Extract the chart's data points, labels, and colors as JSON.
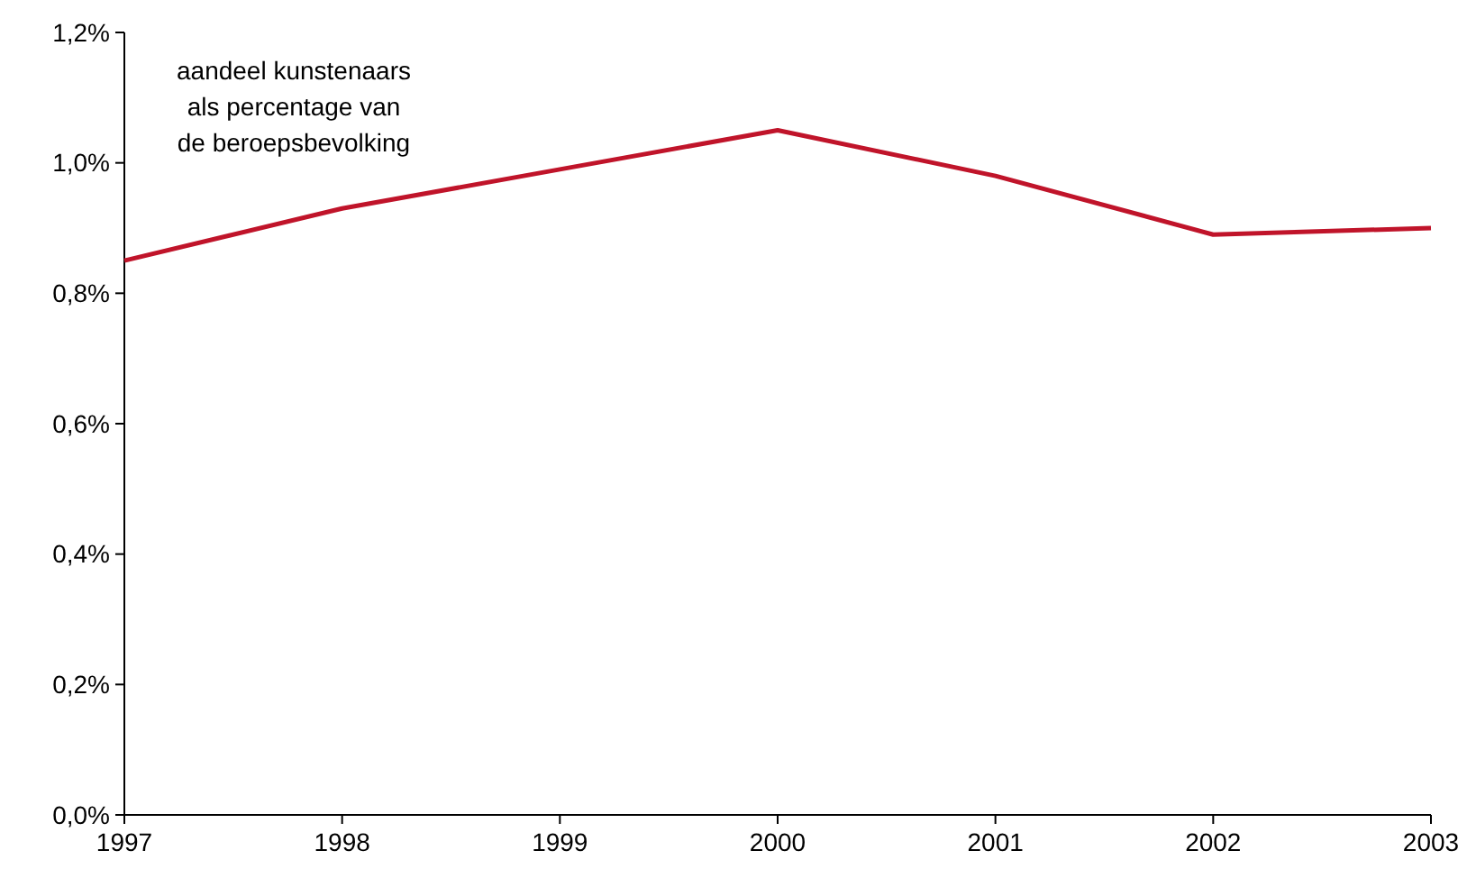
{
  "chart_data": {
    "type": "line",
    "categories": [
      "1997",
      "1998",
      "1999",
      "2000",
      "2001",
      "2002",
      "2003"
    ],
    "series": [
      {
        "color": "#c0142a",
        "values": [
          0.85,
          0.93,
          0.99,
          1.05,
          0.98,
          0.89,
          0.9
        ]
      }
    ],
    "ylim": [
      0,
      1.2
    ],
    "yticks": [
      {
        "value": 0,
        "label": "0,0%"
      },
      {
        "value": 0.2,
        "label": "0,2%"
      },
      {
        "value": 0.4,
        "label": "0,4%"
      },
      {
        "value": 0.6,
        "label": "0,6%"
      },
      {
        "value": 0.8,
        "label": "0,8%"
      },
      {
        "value": 1.0,
        "label": "1,0%"
      },
      {
        "value": 1.2,
        "label": "1,2%"
      }
    ],
    "annotations": [
      "aandeel kunstenaars\nals percentage van\nde beroepsbevolking"
    ],
    "grid": false,
    "marker": "none",
    "line_style": "solid"
  }
}
